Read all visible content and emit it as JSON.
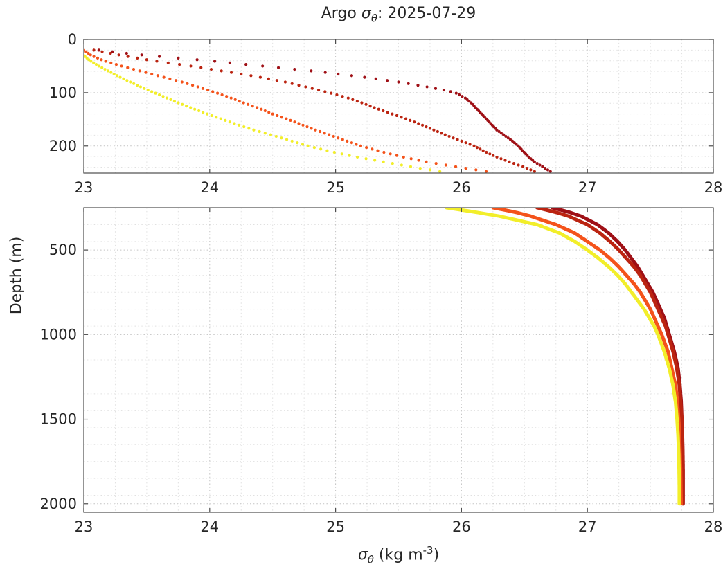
{
  "title": {
    "prefix": "Argo ",
    "sigma": "σ",
    "theta_sub": "θ",
    "suffix": ": 2025-07-29"
  },
  "ylabel": "Depth (m)",
  "xlabel": {
    "sigma": "σ",
    "theta_sub": "θ",
    "mid": " (kg m",
    "sup": "-3",
    "end": ")"
  },
  "chart_data": {
    "type": "line",
    "title": "Argo sigma-theta: 2025-07-29",
    "xlabel": "sigma-theta (kg m^-3)",
    "ylabel": "Depth (m)",
    "xlim": [
      23,
      28
    ],
    "xticks": [
      23,
      24,
      25,
      26,
      27,
      28
    ],
    "grid": "dotted major and minor",
    "legend": "none",
    "subplots": [
      {
        "id": "upper",
        "depth_range": [
          0,
          251
        ],
        "yticks": [
          0,
          100,
          200
        ],
        "y_minor_step": 20,
        "style": "dot-markers"
      },
      {
        "id": "lower",
        "depth_range": [
          250,
          2050
        ],
        "yticks": [
          500,
          1000,
          1500,
          2000
        ],
        "y_minor_step": 100,
        "style": "thick-lines"
      }
    ],
    "series": [
      {
        "name": "profile-dark-red",
        "color": "#9f1016",
        "points": [
          [
            20,
            23.12
          ],
          [
            25,
            23.3
          ],
          [
            30,
            23.5
          ],
          [
            35,
            23.75
          ],
          [
            40,
            24.0
          ],
          [
            45,
            24.2
          ],
          [
            50,
            24.42
          ],
          [
            55,
            24.63
          ],
          [
            60,
            24.85
          ],
          [
            65,
            25.02
          ],
          [
            70,
            25.2
          ],
          [
            75,
            25.35
          ],
          [
            80,
            25.5
          ],
          [
            85,
            25.63
          ],
          [
            90,
            25.75
          ],
          [
            95,
            25.86
          ],
          [
            100,
            25.95
          ],
          [
            110,
            26.03
          ],
          [
            120,
            26.08
          ],
          [
            130,
            26.12
          ],
          [
            140,
            26.16
          ],
          [
            150,
            26.2
          ],
          [
            160,
            26.24
          ],
          [
            170,
            26.28
          ],
          [
            180,
            26.34
          ],
          [
            190,
            26.4
          ],
          [
            200,
            26.45
          ],
          [
            210,
            26.49
          ],
          [
            220,
            26.53
          ],
          [
            230,
            26.58
          ],
          [
            240,
            26.65
          ],
          [
            250,
            26.72
          ],
          [
            275,
            26.85
          ],
          [
            300,
            26.95
          ],
          [
            350,
            27.08
          ],
          [
            400,
            27.17
          ],
          [
            450,
            27.24
          ],
          [
            500,
            27.3
          ],
          [
            550,
            27.35
          ],
          [
            600,
            27.4
          ],
          [
            650,
            27.44
          ],
          [
            700,
            27.48
          ],
          [
            750,
            27.52
          ],
          [
            800,
            27.55
          ],
          [
            850,
            27.58
          ],
          [
            900,
            27.61
          ],
          [
            950,
            27.63
          ],
          [
            1000,
            27.65
          ],
          [
            1100,
            27.69
          ],
          [
            1200,
            27.72
          ],
          [
            1300,
            27.735
          ],
          [
            1400,
            27.745
          ],
          [
            1500,
            27.75
          ],
          [
            1600,
            27.755
          ],
          [
            1700,
            27.758
          ],
          [
            1800,
            27.76
          ],
          [
            1900,
            27.76
          ],
          [
            2000,
            27.76
          ]
        ]
      },
      {
        "name": "profile-red",
        "color": "#bb2411",
        "points": [
          [
            20,
            23.08
          ],
          [
            30,
            23.3
          ],
          [
            40,
            23.55
          ],
          [
            50,
            23.85
          ],
          [
            60,
            24.12
          ],
          [
            70,
            24.38
          ],
          [
            80,
            24.6
          ],
          [
            90,
            24.78
          ],
          [
            100,
            24.95
          ],
          [
            110,
            25.1
          ],
          [
            120,
            25.22
          ],
          [
            130,
            25.33
          ],
          [
            140,
            25.45
          ],
          [
            150,
            25.57
          ],
          [
            160,
            25.68
          ],
          [
            170,
            25.78
          ],
          [
            180,
            25.88
          ],
          [
            190,
            25.99
          ],
          [
            200,
            26.1
          ],
          [
            210,
            26.18
          ],
          [
            220,
            26.27
          ],
          [
            230,
            26.38
          ],
          [
            240,
            26.5
          ],
          [
            250,
            26.6
          ],
          [
            275,
            26.74
          ],
          [
            300,
            26.85
          ],
          [
            350,
            27.0
          ],
          [
            400,
            27.1
          ],
          [
            450,
            27.18
          ],
          [
            500,
            27.25
          ],
          [
            550,
            27.31
          ],
          [
            600,
            27.37
          ],
          [
            650,
            27.42
          ],
          [
            700,
            27.46
          ],
          [
            750,
            27.5
          ],
          [
            800,
            27.53
          ],
          [
            850,
            27.56
          ],
          [
            900,
            27.59
          ],
          [
            950,
            27.62
          ],
          [
            1000,
            27.64
          ],
          [
            1100,
            27.68
          ],
          [
            1200,
            27.71
          ],
          [
            1300,
            27.73
          ],
          [
            1400,
            27.74
          ],
          [
            1500,
            27.75
          ],
          [
            1600,
            27.754
          ],
          [
            1700,
            27.757
          ],
          [
            1800,
            27.758
          ],
          [
            1900,
            27.758
          ],
          [
            2000,
            27.758
          ]
        ]
      },
      {
        "name": "profile-orange",
        "color": "#f4531b",
        "points": [
          [
            20,
            23.0
          ],
          [
            30,
            23.06
          ],
          [
            40,
            23.16
          ],
          [
            50,
            23.3
          ],
          [
            60,
            23.46
          ],
          [
            70,
            23.62
          ],
          [
            80,
            23.78
          ],
          [
            90,
            23.92
          ],
          [
            100,
            24.05
          ],
          [
            110,
            24.17
          ],
          [
            120,
            24.28
          ],
          [
            130,
            24.4
          ],
          [
            140,
            24.5
          ],
          [
            150,
            24.62
          ],
          [
            160,
            24.73
          ],
          [
            170,
            24.84
          ],
          [
            180,
            24.96
          ],
          [
            190,
            25.08
          ],
          [
            200,
            25.2
          ],
          [
            210,
            25.35
          ],
          [
            220,
            25.52
          ],
          [
            230,
            25.72
          ],
          [
            240,
            25.98
          ],
          [
            250,
            26.25
          ],
          [
            275,
            26.42
          ],
          [
            300,
            26.55
          ],
          [
            350,
            26.75
          ],
          [
            400,
            26.9
          ],
          [
            450,
            27.0
          ],
          [
            500,
            27.1
          ],
          [
            550,
            27.18
          ],
          [
            600,
            27.25
          ],
          [
            650,
            27.31
          ],
          [
            700,
            27.37
          ],
          [
            750,
            27.42
          ],
          [
            800,
            27.46
          ],
          [
            850,
            27.5
          ],
          [
            900,
            27.53
          ],
          [
            950,
            27.56
          ],
          [
            1000,
            27.59
          ],
          [
            1100,
            27.64
          ],
          [
            1200,
            27.67
          ],
          [
            1300,
            27.7
          ],
          [
            1400,
            27.715
          ],
          [
            1500,
            27.725
          ],
          [
            1600,
            27.732
          ],
          [
            1700,
            27.736
          ],
          [
            1800,
            27.74
          ],
          [
            1900,
            27.742
          ],
          [
            2000,
            27.744
          ]
        ]
      },
      {
        "name": "profile-yellow",
        "color": "#f2ee2a",
        "points": [
          [
            20,
            22.97
          ],
          [
            30,
            23.0
          ],
          [
            40,
            23.05
          ],
          [
            50,
            23.12
          ],
          [
            60,
            23.2
          ],
          [
            70,
            23.28
          ],
          [
            80,
            23.37
          ],
          [
            90,
            23.46
          ],
          [
            100,
            23.56
          ],
          [
            110,
            23.66
          ],
          [
            120,
            23.76
          ],
          [
            130,
            23.87
          ],
          [
            140,
            23.98
          ],
          [
            150,
            24.1
          ],
          [
            160,
            24.22
          ],
          [
            170,
            24.35
          ],
          [
            180,
            24.5
          ],
          [
            190,
            24.64
          ],
          [
            200,
            24.78
          ],
          [
            210,
            24.95
          ],
          [
            220,
            25.15
          ],
          [
            230,
            25.38
          ],
          [
            240,
            25.62
          ],
          [
            250,
            25.88
          ],
          [
            275,
            26.1
          ],
          [
            300,
            26.3
          ],
          [
            350,
            26.6
          ],
          [
            400,
            26.78
          ],
          [
            450,
            26.9
          ],
          [
            500,
            27.0
          ],
          [
            550,
            27.09
          ],
          [
            600,
            27.17
          ],
          [
            650,
            27.24
          ],
          [
            700,
            27.3
          ],
          [
            750,
            27.35
          ],
          [
            800,
            27.4
          ],
          [
            850,
            27.45
          ],
          [
            900,
            27.49
          ],
          [
            950,
            27.53
          ],
          [
            1000,
            27.56
          ],
          [
            1100,
            27.61
          ],
          [
            1200,
            27.65
          ],
          [
            1300,
            27.68
          ],
          [
            1400,
            27.7
          ],
          [
            1500,
            27.712
          ],
          [
            1600,
            27.72
          ],
          [
            1700,
            27.725
          ],
          [
            1800,
            27.728
          ],
          [
            1900,
            27.73
          ],
          [
            2000,
            27.73
          ]
        ]
      }
    ]
  }
}
